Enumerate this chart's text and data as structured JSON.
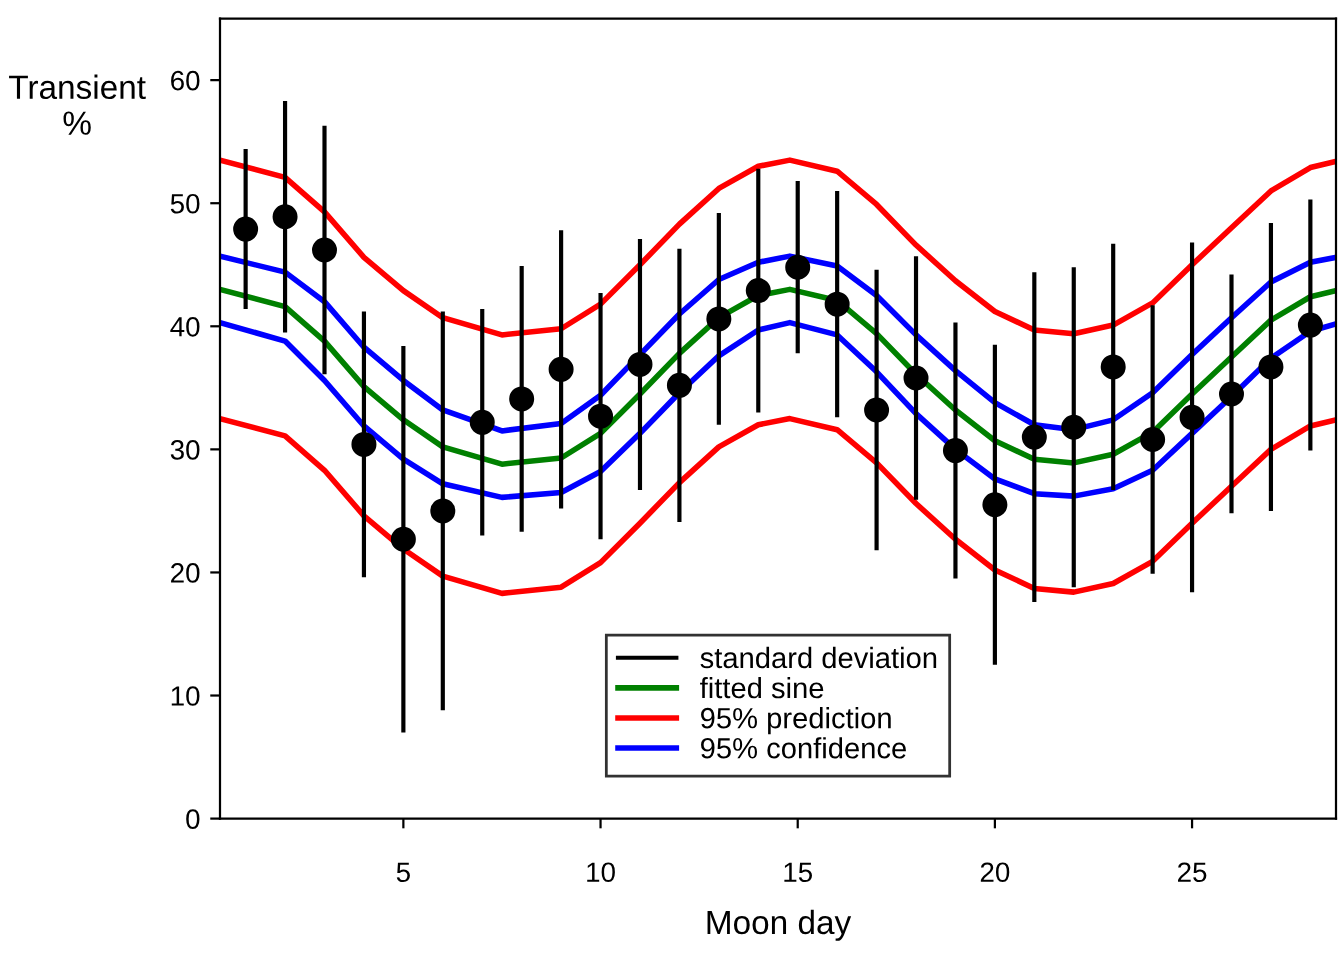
{
  "chart_data": {
    "type": "line",
    "xlabel": "Moon day",
    "ylabel": "Transient\n%",
    "xlim": [
      0.35,
      28.65
    ],
    "ylim": [
      0,
      65
    ],
    "xticks": [
      5,
      10,
      15,
      20,
      25
    ],
    "yticks": [
      0,
      10,
      20,
      30,
      40,
      50,
      60
    ],
    "grid": false,
    "legend": "bottom",
    "line_style": "solid",
    "series": [
      {
        "name": "standard deviation",
        "type": "scatter",
        "marker": "circle",
        "color": "#000000",
        "x": [
          1,
          2,
          3,
          4,
          5,
          6,
          7,
          8,
          9,
          10,
          11,
          12,
          13,
          14,
          15,
          16,
          17,
          18,
          19,
          20,
          21,
          22,
          23,
          24,
          25,
          26,
          27,
          28
        ],
        "values": [
          47.9,
          48.9,
          46.2,
          30.4,
          22.7,
          25.0,
          32.2,
          34.1,
          36.5,
          32.7,
          36.9,
          35.2,
          40.6,
          42.9,
          44.8,
          41.8,
          33.2,
          35.8,
          29.9,
          25.5,
          31.0,
          31.8,
          36.7,
          30.8,
          32.6,
          34.5,
          36.7,
          40.1
        ],
        "errors": [
          6.5,
          9.4,
          10.1,
          10.8,
          15.7,
          16.2,
          9.2,
          10.8,
          11.3,
          10.0,
          10.2,
          11.1,
          8.6,
          9.9,
          7.0,
          9.2,
          11.4,
          9.9,
          10.4,
          13.0,
          13.4,
          13.0,
          10.0,
          10.9,
          14.2,
          9.7,
          11.7,
          10.2
        ]
      },
      {
        "name": "fitted sine",
        "color": "#008000",
        "x": [
          0.35,
          2,
          3,
          4,
          5,
          6,
          7.5,
          9,
          10,
          11,
          12,
          13,
          14,
          14.8,
          16,
          17,
          18,
          19,
          20,
          21,
          22,
          23,
          24,
          25,
          26,
          27,
          28,
          28.65
        ],
        "values": [
          43.0,
          41.6,
          38.8,
          35.1,
          32.4,
          30.2,
          28.8,
          29.3,
          31.3,
          34.5,
          37.8,
          40.7,
          42.5,
          43.0,
          42.1,
          39.4,
          36.1,
          33.2,
          30.7,
          29.2,
          28.9,
          29.6,
          31.4,
          34.5,
          37.5,
          40.5,
          42.4,
          42.9
        ]
      },
      {
        "name": "95% prediction",
        "color": "#ff0000",
        "x": [
          0.35,
          2,
          3,
          4,
          5,
          6,
          7.5,
          9,
          10,
          11,
          12,
          13,
          14,
          14.8,
          16,
          17,
          18,
          19,
          20,
          21,
          22,
          23,
          24,
          25,
          26,
          27,
          28,
          28.65
        ],
        "values": [
          53.5,
          52.1,
          49.3,
          45.6,
          42.9,
          40.7,
          39.3,
          39.8,
          41.8,
          45.0,
          48.3,
          51.2,
          53.0,
          53.5,
          52.6,
          49.9,
          46.6,
          43.7,
          41.2,
          39.7,
          39.4,
          40.1,
          41.9,
          45.0,
          48.0,
          51.0,
          52.9,
          53.4
        ]
      },
      {
        "color": "#ff0000",
        "x": [
          0.35,
          2,
          3,
          4,
          5,
          6,
          7.5,
          9,
          10,
          11,
          12,
          13,
          14,
          14.8,
          16,
          17,
          18,
          19,
          20,
          21,
          22,
          23,
          24,
          25,
          26,
          27,
          28,
          28.65
        ],
        "values": [
          32.5,
          31.1,
          28.3,
          24.6,
          21.9,
          19.7,
          18.3,
          18.8,
          20.8,
          24.0,
          27.3,
          30.2,
          32.0,
          32.5,
          31.6,
          28.9,
          25.6,
          22.7,
          20.2,
          18.7,
          18.4,
          19.1,
          20.9,
          24.0,
          27.0,
          30.0,
          31.9,
          32.4
        ]
      },
      {
        "name": "95% confidence",
        "color": "#0000ff",
        "x": [
          0.35,
          2,
          3,
          4,
          5,
          6,
          7.5,
          9,
          10,
          11,
          12,
          13,
          14,
          14.8,
          16,
          17,
          18,
          19,
          20,
          21,
          22,
          23,
          24,
          25,
          26,
          27,
          28,
          28.65
        ],
        "values": [
          45.7,
          44.4,
          42.0,
          38.3,
          35.6,
          33.2,
          31.5,
          32.1,
          34.4,
          37.7,
          41.0,
          43.8,
          45.2,
          45.7,
          44.9,
          42.5,
          39.3,
          36.4,
          33.8,
          32.0,
          31.6,
          32.4,
          34.6,
          37.7,
          40.7,
          43.6,
          45.2,
          45.6
        ]
      },
      {
        "color": "#0000ff",
        "x": [
          0.35,
          2,
          3,
          4,
          5,
          6,
          7.5,
          9,
          10,
          11,
          12,
          13,
          14,
          14.8,
          16,
          17,
          18,
          19,
          20,
          21,
          22,
          23,
          24,
          25,
          26,
          27,
          28,
          28.65
        ],
        "values": [
          40.3,
          38.8,
          35.6,
          31.9,
          29.2,
          27.2,
          26.1,
          26.5,
          28.2,
          31.3,
          34.6,
          37.6,
          39.7,
          40.3,
          39.3,
          36.3,
          32.9,
          30.0,
          27.6,
          26.4,
          26.2,
          26.8,
          28.3,
          31.3,
          34.3,
          37.4,
          39.6,
          40.2
        ]
      }
    ]
  }
}
